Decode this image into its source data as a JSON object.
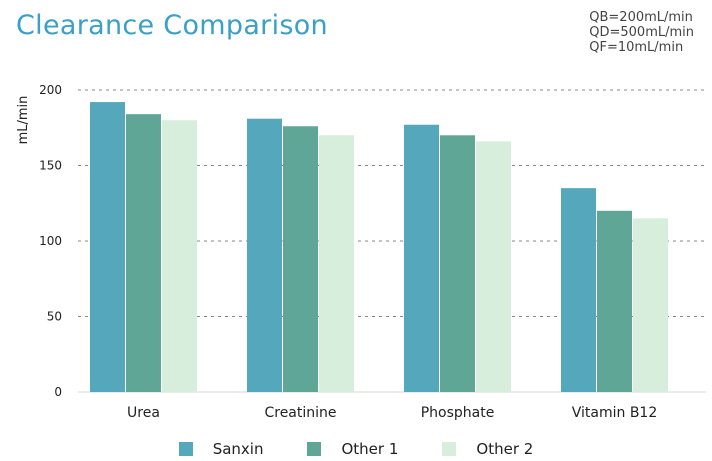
{
  "header": {
    "title": "Clearance Comparison",
    "conditions": [
      "QB=200mL/min",
      "QD=500mL/min",
      "QF=10mL/min"
    ]
  },
  "chart_data": {
    "type": "bar",
    "title": "Clearance Comparison",
    "xlabel": "",
    "ylabel": "mL/min",
    "ylim": [
      0,
      200
    ],
    "yticks": [
      0,
      50,
      100,
      150,
      200
    ],
    "grid": true,
    "legend_position": "bottom",
    "categories": [
      "Urea",
      "Creatinine",
      "Phosphate",
      "Vitamin B12"
    ],
    "series": [
      {
        "name": "Sanxin",
        "color": "#55a8bb",
        "values": [
          192,
          181,
          177,
          135
        ]
      },
      {
        "name": "Other 1",
        "color": "#5fa697",
        "values": [
          184,
          176,
          170,
          120
        ]
      },
      {
        "name": "Other 2",
        "color": "#d6eedb",
        "values": [
          180,
          170,
          166,
          115
        ]
      }
    ]
  }
}
